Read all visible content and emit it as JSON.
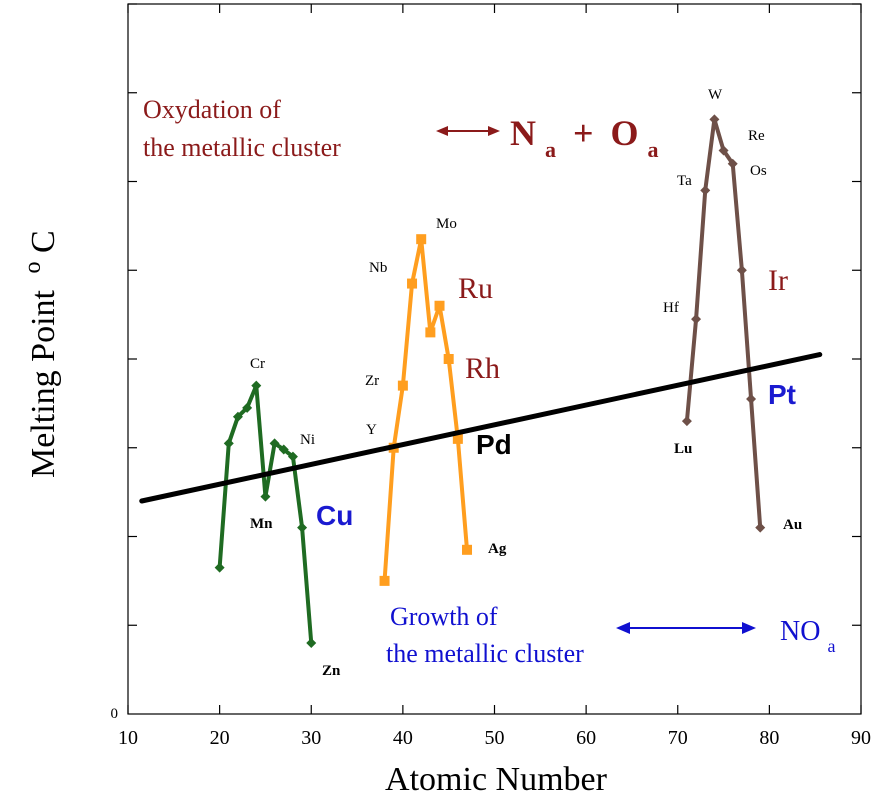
{
  "chart_data": {
    "type": "line",
    "xlabel": "Atomic Number",
    "ylabel": "Melting Point",
    "ylabel_superscript": "o",
    "ylabel_unit": "C",
    "xlim": [
      10,
      90
    ],
    "x_ticks": [
      10,
      20,
      30,
      40,
      50,
      60,
      70,
      80,
      90
    ],
    "y_tick_labels": [
      "0"
    ],
    "y_tick_count": 8,
    "grid": false,
    "series": [
      {
        "color": "#1f6b22",
        "marker": "diamond",
        "points": [
          {
            "x": 20,
            "y": 1.65
          },
          {
            "x": 21,
            "y": 3.05
          },
          {
            "x": 22,
            "y": 3.35
          },
          {
            "x": 23,
            "y": 3.45
          },
          {
            "x": 24,
            "y": 3.7
          },
          {
            "x": 25,
            "y": 2.45
          },
          {
            "x": 26,
            "y": 3.05
          },
          {
            "x": 27,
            "y": 2.98
          },
          {
            "x": 28,
            "y": 2.9
          },
          {
            "x": 29,
            "y": 2.1
          },
          {
            "x": 30,
            "y": 0.8
          }
        ]
      },
      {
        "color": "#ff9e1f",
        "marker": "square",
        "points": [
          {
            "x": 38,
            "y": 1.5
          },
          {
            "x": 39,
            "y": 3.0
          },
          {
            "x": 40,
            "y": 3.7
          },
          {
            "x": 41,
            "y": 4.85
          },
          {
            "x": 42,
            "y": 5.35
          },
          {
            "x": 43,
            "y": 4.3
          },
          {
            "x": 44,
            "y": 4.6
          },
          {
            "x": 45,
            "y": 4.0
          },
          {
            "x": 46,
            "y": 3.1
          },
          {
            "x": 47,
            "y": 1.85
          }
        ]
      },
      {
        "color": "#6e5048",
        "marker": "diamond",
        "points": [
          {
            "x": 71,
            "y": 3.3
          },
          {
            "x": 72,
            "y": 4.45
          },
          {
            "x": 73,
            "y": 5.9
          },
          {
            "x": 74,
            "y": 6.7
          },
          {
            "x": 75,
            "y": 6.35
          },
          {
            "x": 76,
            "y": 6.2
          },
          {
            "x": 77,
            "y": 5.0
          },
          {
            "x": 78,
            "y": 3.55
          },
          {
            "x": 79,
            "y": 2.1
          }
        ]
      },
      {
        "color": "#000000",
        "marker": "none",
        "points": [
          {
            "x": 11.5,
            "y": 2.4
          },
          {
            "x": 85.5,
            "y": 4.05
          }
        ]
      }
    ],
    "element_labels": [
      {
        "text": "Cr",
        "x": 24,
        "y": 3.7
      },
      {
        "text": "Ni",
        "x": 28,
        "y": 2.9
      },
      {
        "text": "Mn",
        "x": 25,
        "y": 2.45
      },
      {
        "text": "Zn",
        "x": 30,
        "y": 0.8
      },
      {
        "text": "Nb",
        "x": 41,
        "y": 4.85
      },
      {
        "text": "Mo",
        "x": 42,
        "y": 5.35
      },
      {
        "text": "Zr",
        "x": 40,
        "y": 3.7
      },
      {
        "text": "Y",
        "x": 39,
        "y": 3.0
      },
      {
        "text": "Ag",
        "x": 47,
        "y": 1.85
      },
      {
        "text": "W",
        "x": 74,
        "y": 6.7
      },
      {
        "text": "Re",
        "x": 75,
        "y": 6.35
      },
      {
        "text": "Ta",
        "x": 73,
        "y": 5.9
      },
      {
        "text": "Os",
        "x": 76,
        "y": 6.2
      },
      {
        "text": "Hf",
        "x": 72,
        "y": 4.45
      },
      {
        "text": "Lu",
        "x": 71,
        "y": 3.3
      },
      {
        "text": "Au",
        "x": 79,
        "y": 2.1
      },
      {
        "text": "Cu",
        "x": 29,
        "y": 2.1
      },
      {
        "text": "Ru",
        "x": 44,
        "y": 4.6
      },
      {
        "text": "Rh",
        "x": 45,
        "y": 4.0
      },
      {
        "text": "Pd",
        "x": 46,
        "y": 3.1
      },
      {
        "text": "Ir",
        "x": 77,
        "y": 5.0
      },
      {
        "text": "Pt",
        "x": 78,
        "y": 3.55
      }
    ],
    "annotations": {
      "oxydation_line1": "Oxydation of",
      "oxydation_line2": "the metallic cluster",
      "formula_na": "N",
      "formula_na_sub": "a",
      "formula_plus": "+",
      "formula_oa": "O",
      "formula_oa_sub": "a",
      "growth_line1": "Growth of",
      "growth_line2": "the metallic cluster",
      "noa": "NO",
      "noa_sub": "a"
    },
    "colors": {
      "oxydation": "#8b1a1a",
      "growth": "#1010d0",
      "cu_pt": "#1a1ad0",
      "ru_rh_ir": "#8b1a1a",
      "pd": "#000000"
    }
  }
}
